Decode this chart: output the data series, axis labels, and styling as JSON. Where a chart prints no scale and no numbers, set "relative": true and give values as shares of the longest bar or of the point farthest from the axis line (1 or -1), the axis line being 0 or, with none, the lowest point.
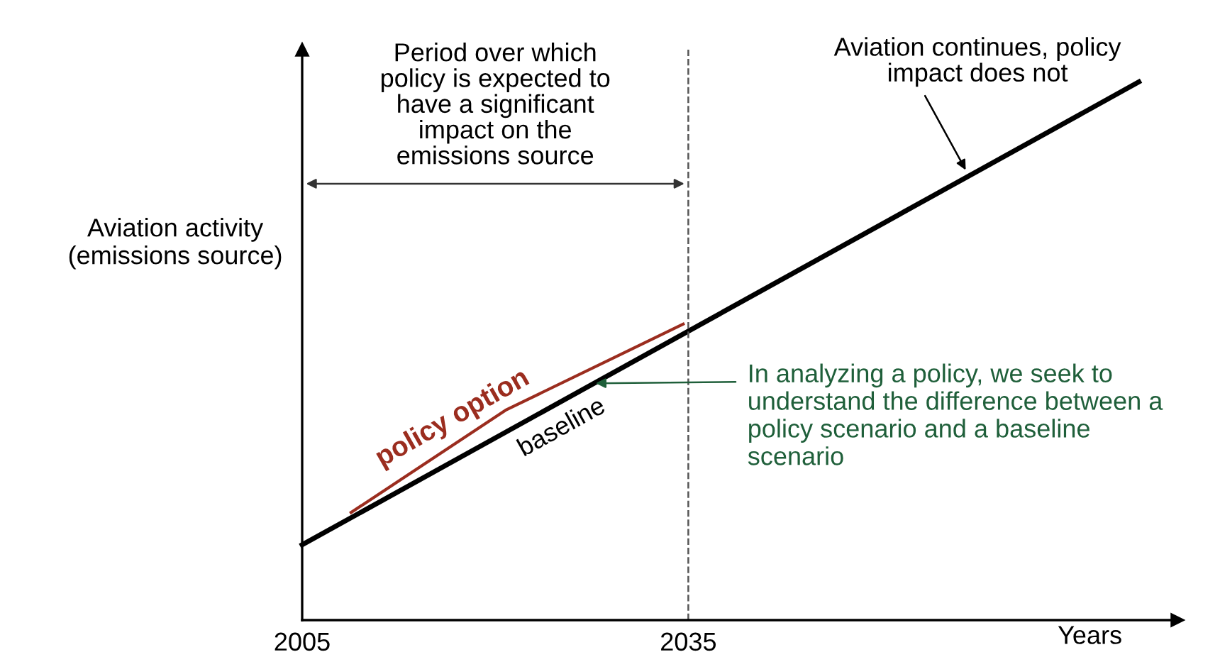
{
  "chart_data": {
    "type": "line",
    "relative": true,
    "xlabel": "Years",
    "ylabel": "Aviation activity\n(emissions source)",
    "xlim": [
      2005,
      2073
    ],
    "xticks": [
      2005,
      2035
    ],
    "series": [
      {
        "name": "baseline",
        "color": "#000000",
        "x": [
          2005,
          2070
        ],
        "values": [
          0.14,
          1
        ]
      },
      {
        "name": "policy option",
        "color": "#9b2d1f",
        "x": [
          2008.8,
          2020.8,
          2034.6
        ],
        "values": [
          0.2,
          0.39,
          0.55
        ]
      }
    ],
    "ref_lines": [
      {
        "axis": "x",
        "value": 2035,
        "line_style": "dashed",
        "color": "#555555"
      }
    ],
    "annotations": [
      "Period over which\npolicy is expected to\nhave a significant\nimpact on the\nemissions source",
      {
        "text": "Aviation continues, policy\nimpact does not",
        "x": 2056.7,
        "y": 0.83
      },
      {
        "text": "In analyzing a policy, we seek to\nunderstand the difference between a\npolicy scenario and a baseline\nscenario",
        "x": 2027.5,
        "y": 0.44
      }
    ],
    "grid": false,
    "marker": "none",
    "line_style": "solid"
  }
}
